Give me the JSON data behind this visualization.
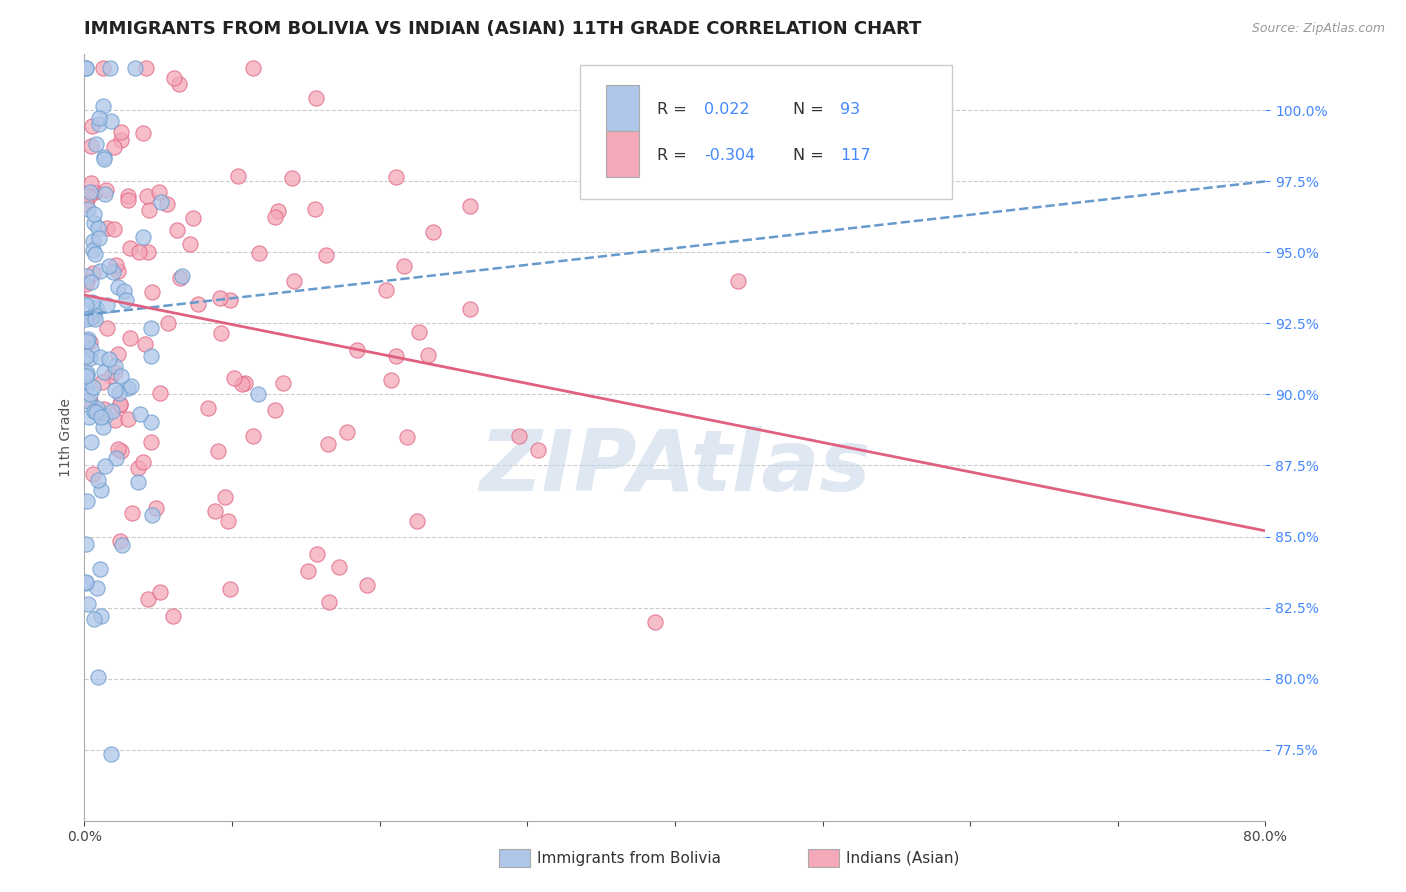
{
  "title": "IMMIGRANTS FROM BOLIVIA VS INDIAN (ASIAN) 11TH GRADE CORRELATION CHART",
  "source_text": "Source: ZipAtlas.com",
  "ylabel": "11th Grade",
  "y_ticks": [
    77.5,
    80.0,
    82.5,
    85.0,
    87.5,
    90.0,
    92.5,
    95.0,
    97.5,
    100.0
  ],
  "y_tick_labels": [
    "77.5%",
    "80.0%",
    "82.5%",
    "85.0%",
    "87.5%",
    "90.0%",
    "92.5%",
    "95.0%",
    "97.5%",
    "100.0%"
  ],
  "xmin": 0.0,
  "xmax": 0.8,
  "ymin": 75.0,
  "ymax": 102.0,
  "blue_R": 0.022,
  "blue_N": 93,
  "pink_R": -0.304,
  "pink_N": 117,
  "blue_color": "#aec6e8",
  "pink_color": "#f4a8b8",
  "blue_edge_color": "#6699cc",
  "pink_edge_color": "#e06080",
  "blue_line_color": "#6699cc",
  "pink_line_color": "#e06080",
  "legend_label_blue": "Immigrants from Bolivia",
  "legend_label_pink": "Indians (Asian)",
  "watermark": "ZIPAtlas",
  "watermark_color": "#c8d8ea",
  "title_fontsize": 13,
  "tick_fontsize": 10,
  "tick_color": "#4488ff",
  "blue_line_y0": 92.8,
  "blue_line_y1": 97.5,
  "pink_line_y0": 93.5,
  "pink_line_y1": 85.2
}
